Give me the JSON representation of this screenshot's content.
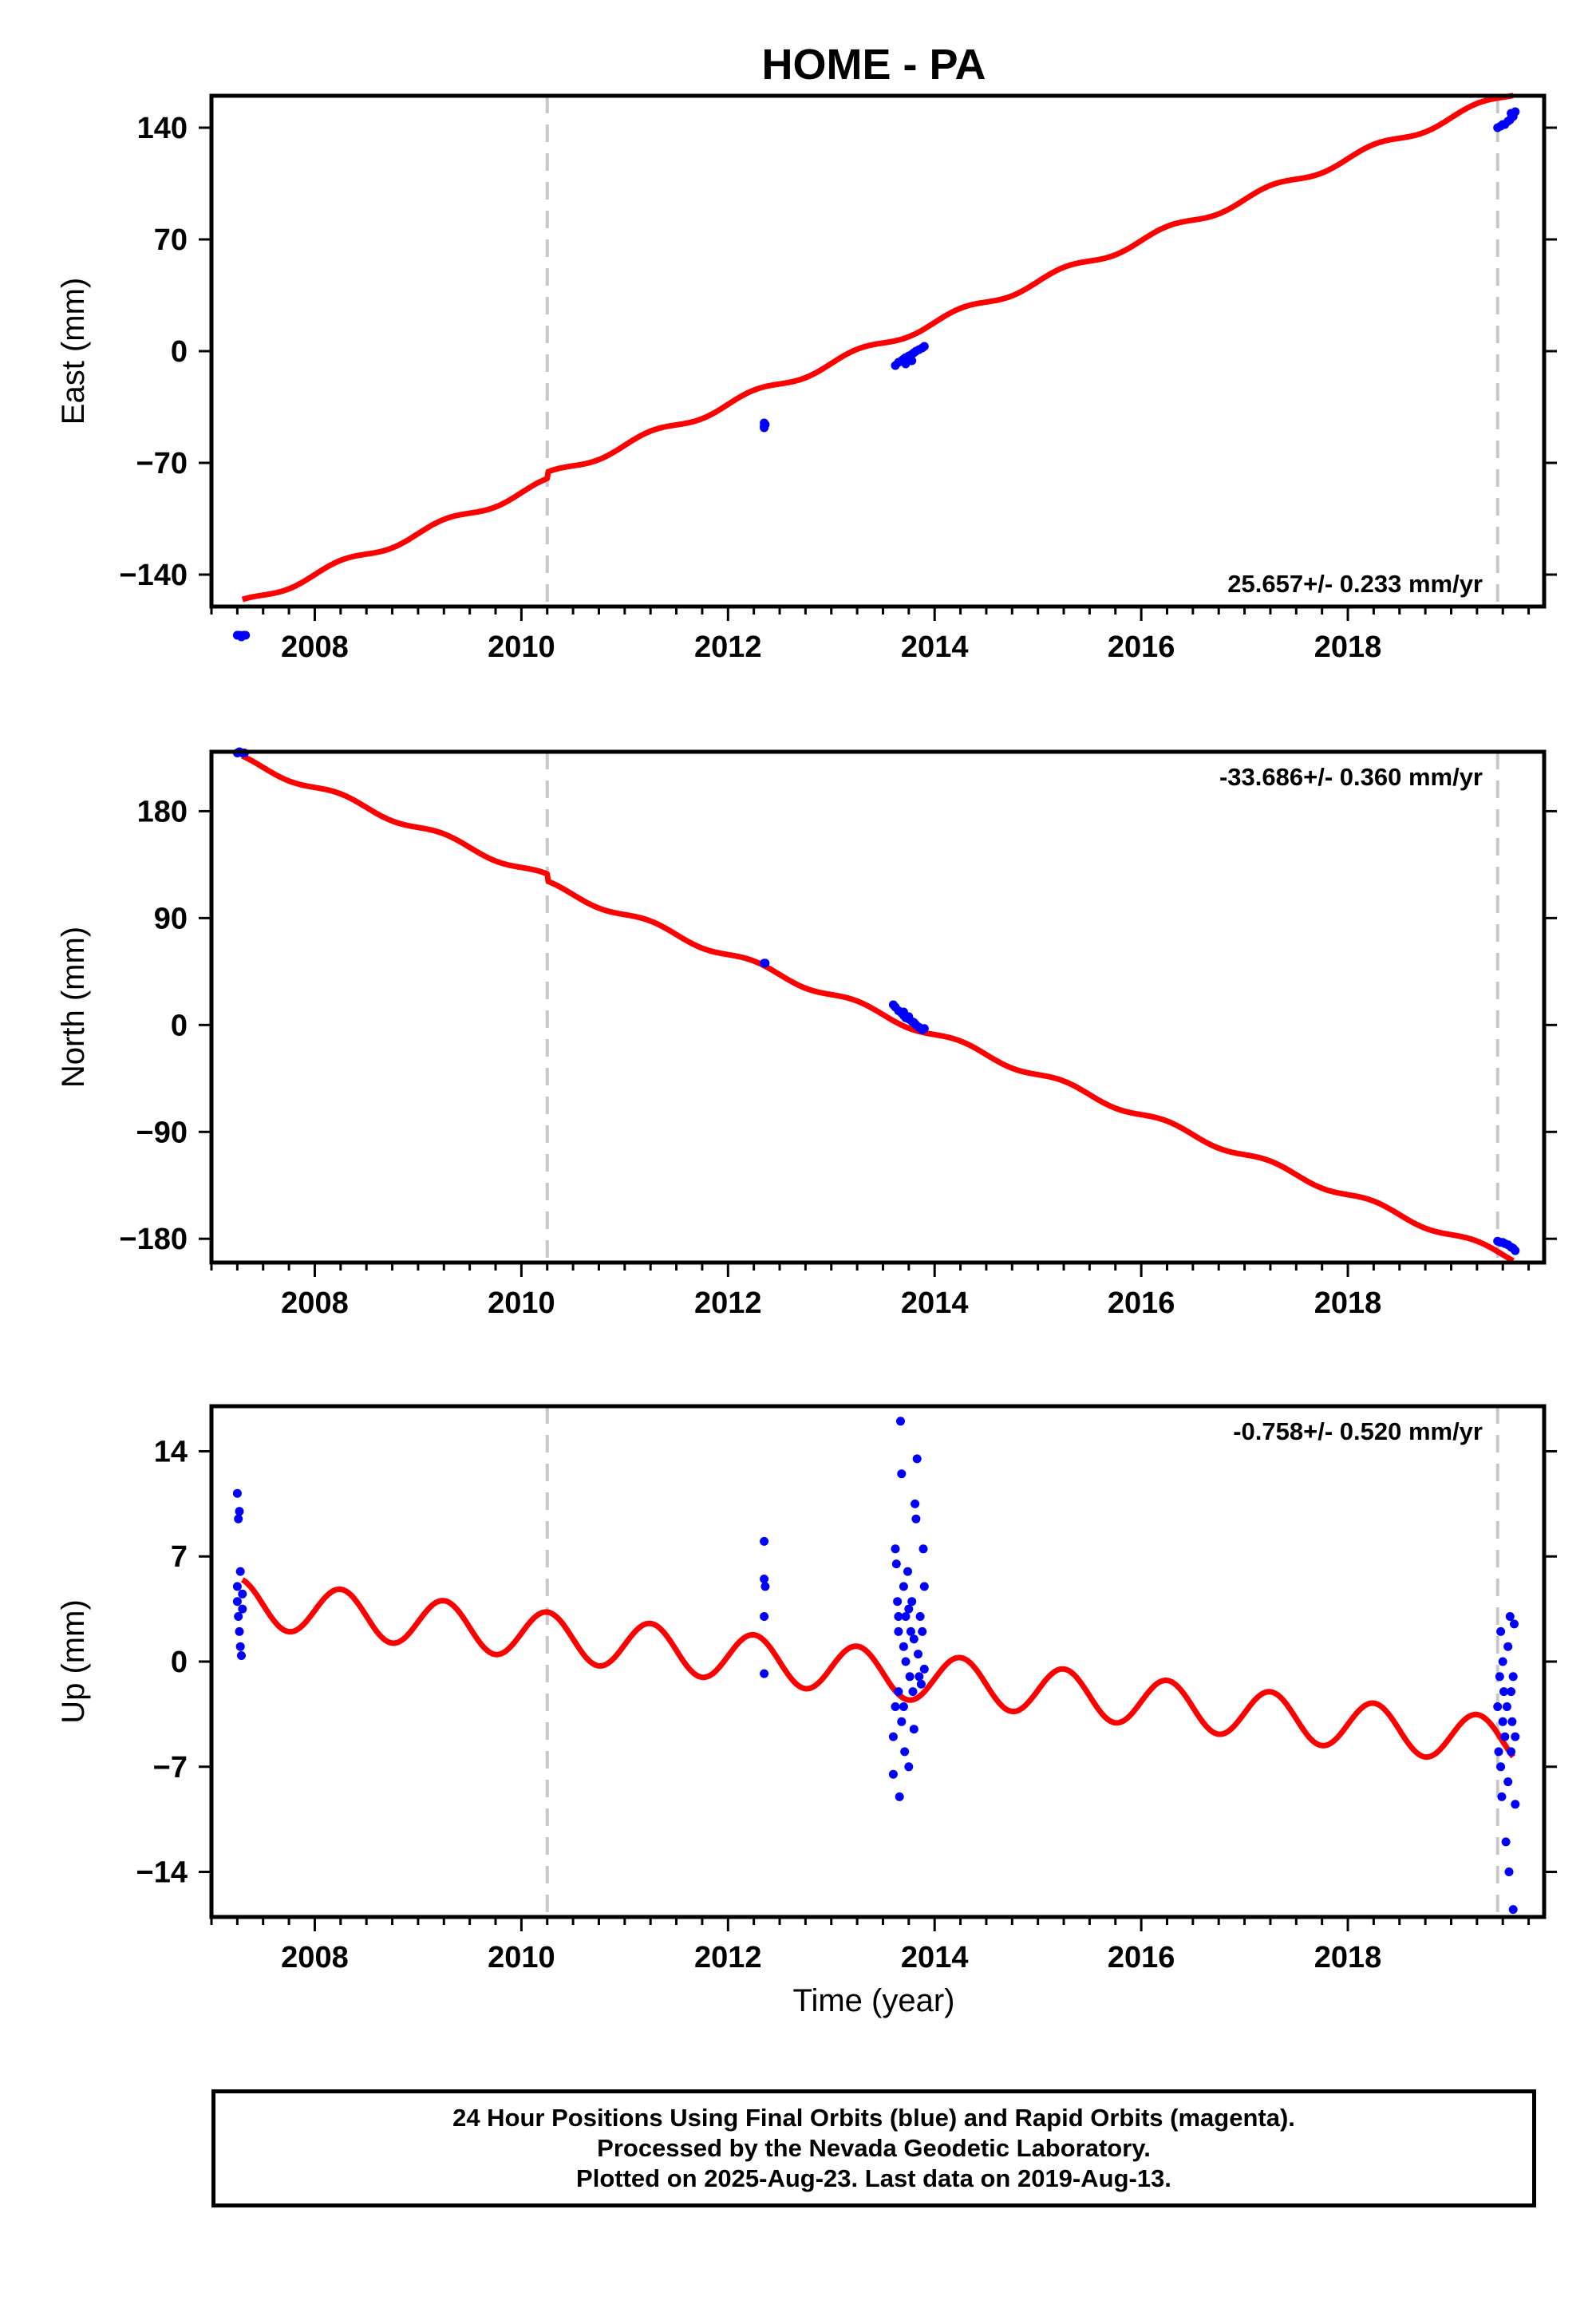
{
  "title": "HOME - PA",
  "xlabel": "Time (year)",
  "colors": {
    "model": "#ff0000",
    "final_orbits": "#0000ff",
    "rapid_orbits": "#ff00ff",
    "event_line": "#c8c8c8"
  },
  "footer": {
    "line1": "24 Hour Positions Using Final Orbits (blue) and Rapid Orbits (magenta).",
    "line2": "Processed by the Nevada Geodetic Laboratory.",
    "line3": "Plotted on 2025-Aug-23. Last data on 2019-Aug-13."
  },
  "chart_data": [
    {
      "type": "scatter",
      "component": "east",
      "ylabel": "East (mm)",
      "rate": "25.657+/- 0.233 mm/yr",
      "xlim": [
        2007.0,
        2019.9
      ],
      "ylim": [
        -160,
        160
      ],
      "xticks": [
        2008,
        2010,
        2012,
        2014,
        2016,
        2018
      ],
      "yticks": [
        -140,
        -70,
        0,
        70,
        140
      ],
      "events": [
        2010.25,
        2019.45
      ],
      "model": {
        "offset": -140,
        "rate": 25.657,
        "seasonal_amp": 2.5,
        "ref_year": 2008,
        "steps": [
          {
            "year": 2010.25,
            "size": 4
          }
        ]
      },
      "points": [
        [
          2007.25,
          -178
        ],
        [
          2007.27,
          -178
        ],
        [
          2007.29,
          -179
        ],
        [
          2007.31,
          -178
        ],
        [
          2007.33,
          -178
        ],
        [
          2012.35,
          -45
        ],
        [
          2012.35,
          -48
        ],
        [
          2012.35,
          -47
        ],
        [
          2012.36,
          -46
        ],
        [
          2013.62,
          -9
        ],
        [
          2013.65,
          -7
        ],
        [
          2013.68,
          -6
        ],
        [
          2013.7,
          -5
        ],
        [
          2013.72,
          -4
        ],
        [
          2013.75,
          -3
        ],
        [
          2013.78,
          -2
        ],
        [
          2013.8,
          -1
        ],
        [
          2013.82,
          0
        ],
        [
          2013.85,
          1
        ],
        [
          2013.88,
          2
        ],
        [
          2013.9,
          3
        ],
        [
          2013.72,
          -8
        ],
        [
          2013.78,
          -6
        ],
        [
          2019.45,
          140
        ],
        [
          2019.48,
          141
        ],
        [
          2019.5,
          142
        ],
        [
          2019.52,
          142
        ],
        [
          2019.55,
          144
        ],
        [
          2019.57,
          145
        ],
        [
          2019.6,
          147
        ],
        [
          2019.62,
          150
        ],
        [
          2019.58,
          149
        ]
      ]
    },
    {
      "type": "scatter",
      "component": "north",
      "ylabel": "North (mm)",
      "rate": "-33.686+/- 0.360 mm/yr",
      "xlim": [
        2007.0,
        2019.9
      ],
      "ylim": [
        -200,
        230
      ],
      "xticks": [
        2008,
        2010,
        2012,
        2014,
        2016,
        2018
      ],
      "yticks": [
        -180,
        -90,
        0,
        90,
        180
      ],
      "events": [
        2010.25,
        2019.45
      ],
      "model": {
        "offset": 200,
        "rate": -33.686,
        "seasonal_amp": 3,
        "ref_year": 2008,
        "steps": [
          {
            "year": 2010.25,
            "size": -6
          }
        ]
      },
      "points": [
        [
          2007.25,
          229
        ],
        [
          2007.27,
          230
        ],
        [
          2007.3,
          229
        ],
        [
          2007.32,
          229
        ],
        [
          2012.35,
          52
        ],
        [
          2012.36,
          52
        ],
        [
          2013.6,
          17
        ],
        [
          2013.62,
          15
        ],
        [
          2013.65,
          12
        ],
        [
          2013.68,
          10
        ],
        [
          2013.7,
          8
        ],
        [
          2013.72,
          6
        ],
        [
          2013.75,
          5
        ],
        [
          2013.78,
          3
        ],
        [
          2013.8,
          2
        ],
        [
          2013.82,
          0
        ],
        [
          2013.85,
          -2
        ],
        [
          2013.88,
          -4
        ],
        [
          2013.9,
          -3
        ],
        [
          2013.7,
          11
        ],
        [
          2013.75,
          7
        ],
        [
          2019.45,
          -182
        ],
        [
          2019.48,
          -183
        ],
        [
          2019.5,
          -183
        ],
        [
          2019.52,
          -184
        ],
        [
          2019.55,
          -185
        ],
        [
          2019.58,
          -187
        ],
        [
          2019.62,
          -190
        ],
        [
          2019.6,
          -188
        ]
      ]
    },
    {
      "type": "scatter",
      "component": "up",
      "ylabel": "Up (mm)",
      "rate": "-0.758+/- 0.520 mm/yr",
      "xlim": [
        2007.0,
        2019.9
      ],
      "ylim": [
        -17,
        17
      ],
      "xticks": [
        2008,
        2010,
        2012,
        2014,
        2016,
        2018
      ],
      "yticks": [
        -14,
        -7,
        0,
        7,
        14
      ],
      "events": [
        2010.25,
        2019.45
      ],
      "model": {
        "offset": 3.4,
        "rate": -0.758,
        "seasonal_amp": 1.6,
        "ref_year": 2008,
        "steps": []
      },
      "points": [
        [
          2007.25,
          11.2
        ],
        [
          2007.26,
          9.5
        ],
        [
          2007.27,
          10
        ],
        [
          2007.28,
          6
        ],
        [
          2007.25,
          4
        ],
        [
          2007.26,
          3
        ],
        [
          2007.27,
          2
        ],
        [
          2007.28,
          1
        ],
        [
          2007.29,
          0.4
        ],
        [
          2007.25,
          5
        ],
        [
          2007.3,
          3.5
        ],
        [
          2007.3,
          4.5
        ],
        [
          2012.35,
          8
        ],
        [
          2012.35,
          5.5
        ],
        [
          2012.36,
          5
        ],
        [
          2012.35,
          3
        ],
        [
          2012.35,
          -0.8
        ],
        [
          2013.6,
          -7.5
        ],
        [
          2013.6,
          -5
        ],
        [
          2013.62,
          -3
        ],
        [
          2013.62,
          7.5
        ],
        [
          2013.63,
          6.5
        ],
        [
          2013.64,
          4
        ],
        [
          2013.65,
          2
        ],
        [
          2013.65,
          -2
        ],
        [
          2013.66,
          -9
        ],
        [
          2013.67,
          16
        ],
        [
          2013.68,
          12.5
        ],
        [
          2013.68,
          -4
        ],
        [
          2013.7,
          1
        ],
        [
          2013.7,
          5
        ],
        [
          2013.71,
          -6
        ],
        [
          2013.72,
          3
        ],
        [
          2013.72,
          0
        ],
        [
          2013.74,
          6
        ],
        [
          2013.75,
          -7
        ],
        [
          2013.76,
          -1
        ],
        [
          2013.77,
          2
        ],
        [
          2013.78,
          4
        ],
        [
          2013.79,
          -2
        ],
        [
          2013.8,
          1.5
        ],
        [
          2013.81,
          10.5
        ],
        [
          2013.82,
          9.5
        ],
        [
          2013.83,
          13.5
        ],
        [
          2013.84,
          0.5
        ],
        [
          2013.85,
          -1
        ],
        [
          2013.86,
          3
        ],
        [
          2013.87,
          -1.5
        ],
        [
          2013.88,
          2
        ],
        [
          2013.89,
          7.5
        ],
        [
          2013.9,
          -0.5
        ],
        [
          2013.9,
          5
        ],
        [
          2013.65,
          3
        ],
        [
          2013.7,
          -3
        ],
        [
          2013.75,
          3.5
        ],
        [
          2013.8,
          -4.5
        ],
        [
          2019.45,
          -3
        ],
        [
          2019.46,
          -6
        ],
        [
          2019.47,
          -1
        ],
        [
          2019.48,
          -7
        ],
        [
          2019.48,
          2
        ],
        [
          2019.49,
          -9
        ],
        [
          2019.5,
          -4
        ],
        [
          2019.5,
          0
        ],
        [
          2019.51,
          -2
        ],
        [
          2019.52,
          -5
        ],
        [
          2019.53,
          -12
        ],
        [
          2019.54,
          -3
        ],
        [
          2019.55,
          1
        ],
        [
          2019.55,
          -8
        ],
        [
          2019.56,
          -14
        ],
        [
          2019.57,
          3
        ],
        [
          2019.58,
          -6
        ],
        [
          2019.58,
          -2
        ],
        [
          2019.59,
          -4
        ],
        [
          2019.6,
          -16.5
        ],
        [
          2019.6,
          -1
        ],
        [
          2019.61,
          2.5
        ],
        [
          2019.62,
          -9.5
        ],
        [
          2019.62,
          -5
        ]
      ]
    }
  ]
}
